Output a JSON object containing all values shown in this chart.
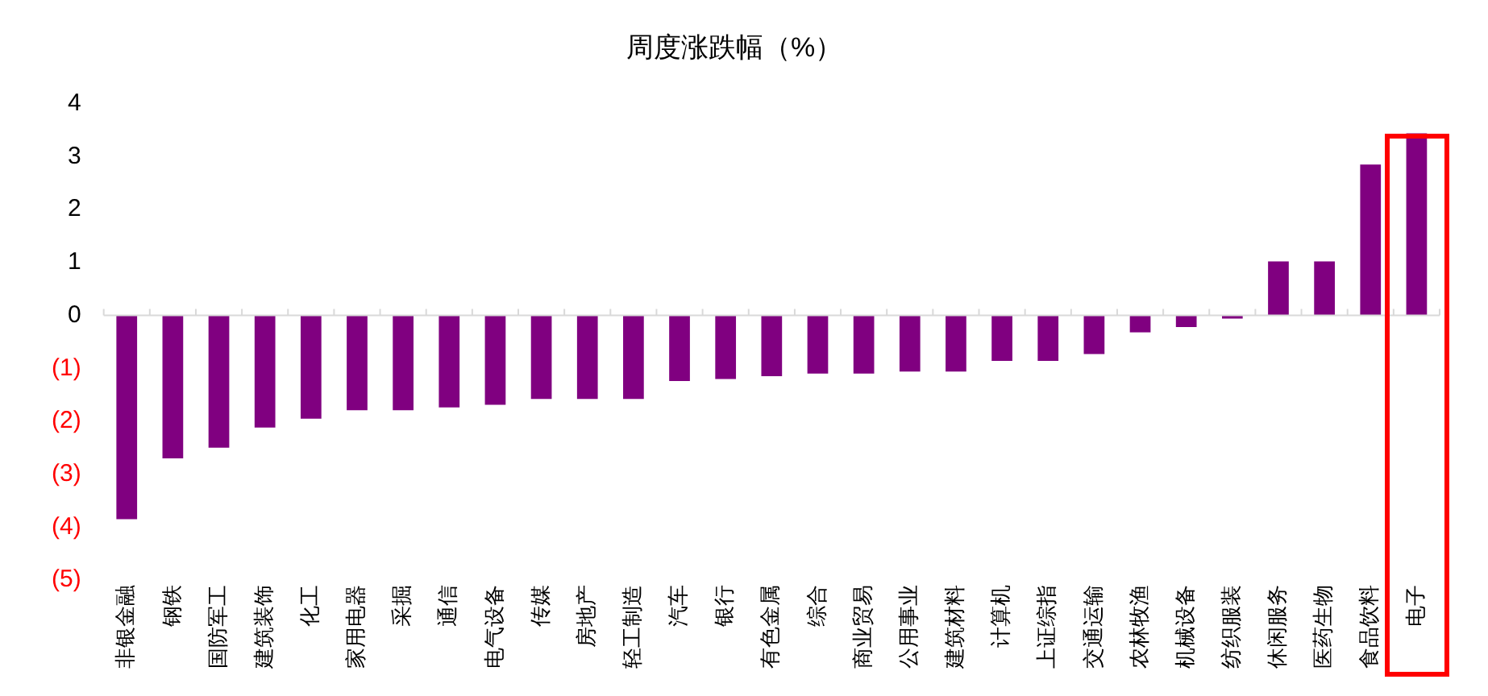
{
  "chart_data": {
    "type": "bar",
    "title": "周度涨跌幅（%）",
    "categories": [
      "非银金融",
      "钢铁",
      "国防军工",
      "建筑装饰",
      "化工",
      "家用电器",
      "采掘",
      "通信",
      "电气设备",
      "传媒",
      "房地产",
      "轻工制造",
      "汽车",
      "银行",
      "有色金属",
      "综合",
      "商业贸易",
      "公用事业",
      "建筑材料",
      "计算机",
      "上证综指",
      "交通运输",
      "农林牧渔",
      "机械设备",
      "纺织服装",
      "休闲服务",
      "医药生物",
      "食品饮料",
      "电子"
    ],
    "values": [
      -3.85,
      -2.7,
      -2.5,
      -2.12,
      -1.95,
      -1.79,
      -1.79,
      -1.74,
      -1.69,
      -1.58,
      -1.58,
      -1.58,
      -1.24,
      -1.2,
      -1.15,
      -1.1,
      -1.1,
      -1.06,
      -1.06,
      -0.86,
      -0.86,
      -0.73,
      -0.32,
      -0.22,
      -0.06,
      1.02,
      1.02,
      2.85,
      3.44
    ],
    "color": "#800080",
    "ylim": [
      -5,
      4
    ],
    "yticks": [
      4,
      3,
      2,
      1,
      0,
      {
        "value": -1,
        "label": "(1)"
      },
      {
        "value": -2,
        "label": "(2)"
      },
      {
        "value": -3,
        "label": "(3)"
      },
      {
        "value": -4,
        "label": "(4)"
      },
      {
        "value": -5,
        "label": "(5)"
      }
    ],
    "ref_lines": [
      {
        "axis": "y",
        "value": 0,
        "color": "#d9d9d9"
      }
    ],
    "grid": false,
    "legend": false
  }
}
